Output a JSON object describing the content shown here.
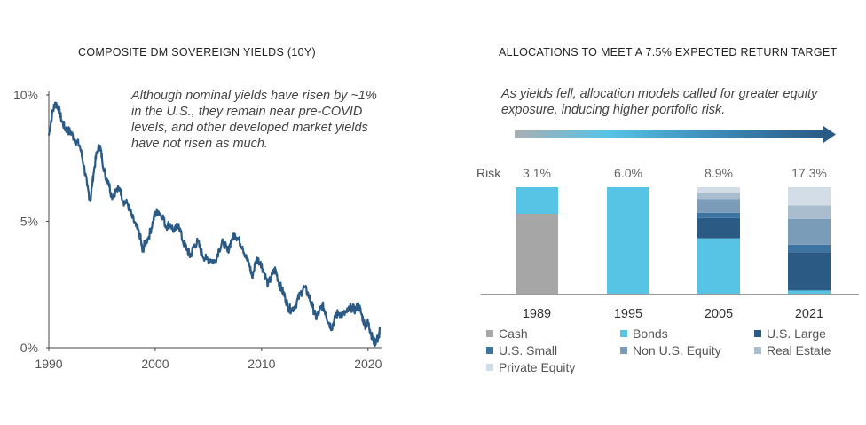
{
  "chart_data": [
    {
      "type": "line",
      "title": "COMPOSITE DM SOVEREIGN YIELDS (10Y)",
      "annotation": "Although nominal yields have risen by ~1% in the U.S., they remain near pre-COVID levels, and other developed market yields have not risen as much.",
      "xlabel": "",
      "ylabel": "",
      "xlim": [
        1990,
        2021.1
      ],
      "ylim": [
        0,
        10
      ],
      "xticks": [
        "1990",
        "2000",
        "2010",
        "2020"
      ],
      "yticks": [
        "0%",
        "5%",
        "10%"
      ],
      "line_color": "#2b5a85",
      "series": [
        {
          "x": [
            1990.0,
            1990.3,
            1990.6,
            1990.9,
            1991.2,
            1991.5,
            1991.8,
            1992.1,
            1992.5,
            1992.9,
            1993.3,
            1993.6,
            1993.9,
            1994.2,
            1994.5,
            1994.8,
            1995.0,
            1995.3,
            1995.6,
            1995.9,
            1996.3,
            1996.7,
            1997.0,
            1997.4,
            1997.8,
            1998.2,
            1998.6,
            1998.8,
            1999.0,
            1999.4,
            1999.8,
            2000.0,
            2000.3,
            2000.7,
            2001.0,
            2001.4,
            2001.8,
            2002.2,
            2002.6,
            2003.0,
            2003.3,
            2003.6,
            2004.0,
            2004.4,
            2004.8,
            2005.2,
            2005.6,
            2006.0,
            2006.4,
            2006.8,
            2007.2,
            2007.5,
            2007.8,
            2008.2,
            2008.6,
            2008.9,
            2009.1,
            2009.5,
            2009.9,
            2010.2,
            2010.6,
            2011.0,
            2011.3,
            2011.6,
            2011.9,
            2012.2,
            2012.5,
            2012.8,
            2013.2,
            2013.6,
            2014.0,
            2014.4,
            2014.8,
            2015.1,
            2015.4,
            2015.7,
            2016.0,
            2016.3,
            2016.6,
            2016.9,
            2017.2,
            2017.6,
            2018.0,
            2018.4,
            2018.8,
            2019.1,
            2019.4,
            2019.7,
            2020.0,
            2020.2,
            2020.4,
            2020.6,
            2020.8,
            2021.0,
            2021.1
          ],
          "y": [
            8.4,
            9.2,
            9.7,
            9.5,
            9.0,
            8.7,
            8.6,
            8.5,
            8.2,
            8.0,
            7.2,
            6.4,
            5.8,
            6.9,
            7.7,
            8.0,
            7.5,
            6.8,
            6.6,
            6.0,
            6.2,
            6.3,
            5.8,
            5.7,
            5.2,
            4.8,
            4.4,
            3.8,
            4.1,
            4.4,
            5.0,
            5.3,
            5.4,
            5.2,
            4.8,
            4.9,
            4.6,
            4.9,
            4.2,
            3.9,
            3.6,
            4.0,
            4.2,
            3.7,
            3.5,
            3.5,
            3.4,
            3.9,
            4.2,
            3.8,
            4.3,
            4.5,
            4.3,
            4.0,
            3.5,
            3.2,
            2.8,
            3.5,
            3.4,
            3.0,
            2.5,
            2.9,
            3.1,
            2.6,
            2.3,
            2.0,
            1.6,
            1.5,
            1.7,
            2.1,
            2.4,
            2.1,
            1.6,
            1.2,
            1.4,
            1.7,
            1.4,
            1.0,
            0.8,
            1.2,
            1.4,
            1.3,
            1.4,
            1.6,
            1.5,
            1.7,
            1.3,
            0.9,
            1.0,
            0.7,
            0.4,
            0.2,
            0.3,
            0.4,
            0.7
          ]
        }
      ]
    },
    {
      "type": "bar",
      "stacked": true,
      "title": "ALLOCATIONS TO MEET A 7.5% EXPECTED RETURN TARGET",
      "annotation": "As yields fell, allocation models called for greater equity exposure, inducing higher portfolio risk.",
      "risk_label": "Risk",
      "categories": [
        "1989",
        "1995",
        "2005",
        "2021"
      ],
      "risk": [
        "3.1%",
        "6.0%",
        "8.9%",
        "17.3%"
      ],
      "ylim": [
        0,
        100
      ],
      "series": [
        {
          "name": "Cash",
          "color": "#a6a6a6",
          "values": [
            75,
            0,
            0,
            0
          ]
        },
        {
          "name": "Bonds",
          "color": "#57c4e6",
          "values": [
            25,
            100,
            52,
            3
          ]
        },
        {
          "name": "U.S. Large",
          "color": "#2b5a85",
          "values": [
            0,
            0,
            19,
            36
          ]
        },
        {
          "name": "U.S. Small",
          "color": "#3d73a0",
          "values": [
            0,
            0,
            5,
            7
          ]
        },
        {
          "name": "Non U.S. Equity",
          "color": "#7b9cb8",
          "values": [
            0,
            0,
            13,
            24
          ]
        },
        {
          "name": "Real Estate",
          "color": "#a9bdcf",
          "values": [
            0,
            0,
            6,
            13
          ]
        },
        {
          "name": "Private Equity",
          "color": "#d3dde8",
          "values": [
            0,
            0,
            5,
            17
          ]
        }
      ]
    }
  ]
}
